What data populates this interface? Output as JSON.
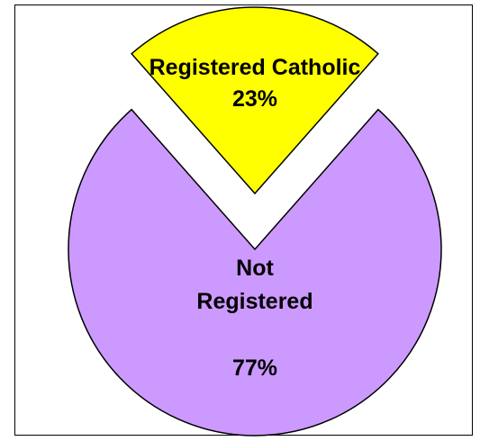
{
  "chart_data": {
    "type": "pie",
    "title": "",
    "exploded": true,
    "slices": [
      {
        "name": "Registered Catholic",
        "value": 23,
        "label_lines": [
          "Registered Catholic",
          "23%"
        ],
        "color": "#FFFF00"
      },
      {
        "name": "Not Registered",
        "value": 77,
        "label_lines": [
          "Not",
          "Registered",
          "",
          "77%"
        ],
        "color": "#CC99FF"
      }
    ],
    "slice_outline_color": "#000000"
  }
}
